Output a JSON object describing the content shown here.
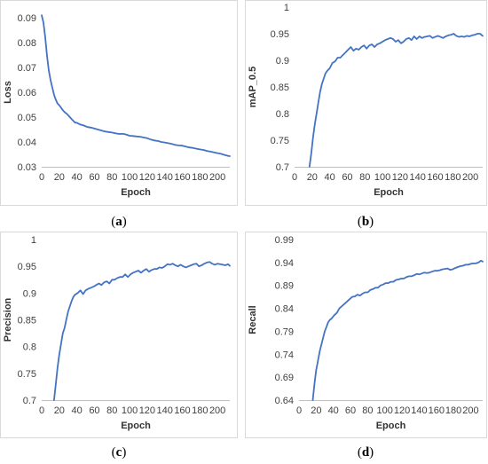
{
  "colors": {
    "line": "#4472C4",
    "axis": "#bfbfbf",
    "text": "#404040",
    "frame": "#d9d9d9"
  },
  "chart_data": [
    {
      "type": "line",
      "id": "a",
      "caption": "a",
      "xlabel": "Epoch",
      "ylabel": "Loss",
      "xlim": [
        0,
        214
      ],
      "ylim": [
        0.03,
        0.09
      ],
      "xticks": [
        0,
        20,
        40,
        60,
        80,
        100,
        120,
        140,
        160,
        180,
        200
      ],
      "xtick_labels": [
        "0",
        "20",
        "40",
        "60",
        "80",
        "100",
        "120",
        "140",
        "160",
        "180",
        "200"
      ],
      "yticks": [
        0.03,
        0.04,
        0.05,
        0.06,
        0.07,
        0.08,
        0.09
      ],
      "ytick_labels": [
        "0.03",
        "0.04",
        "0.05",
        "0.06",
        "0.07",
        "0.08",
        "0.09"
      ],
      "grid": false,
      "x": [
        0,
        2,
        4,
        6,
        8,
        10,
        12,
        14,
        16,
        18,
        20,
        22,
        24,
        26,
        28,
        30,
        32,
        34,
        36,
        38,
        40,
        44,
        48,
        52,
        56,
        60,
        64,
        68,
        72,
        76,
        80,
        84,
        88,
        92,
        96,
        100,
        104,
        108,
        112,
        116,
        120,
        124,
        128,
        132,
        136,
        140,
        144,
        148,
        152,
        156,
        160,
        164,
        168,
        172,
        176,
        180,
        184,
        188,
        192,
        196,
        200,
        204,
        208,
        212,
        214
      ],
      "y": [
        0.091,
        0.088,
        0.082,
        0.075,
        0.069,
        0.065,
        0.062,
        0.059,
        0.057,
        0.0555,
        0.0548,
        0.0538,
        0.0528,
        0.052,
        0.0515,
        0.0508,
        0.05,
        0.0492,
        0.0485,
        0.0478,
        0.0477,
        0.047,
        0.0466,
        0.046,
        0.0458,
        0.0454,
        0.045,
        0.0446,
        0.0442,
        0.044,
        0.0438,
        0.0435,
        0.0432,
        0.0433,
        0.043,
        0.0425,
        0.0424,
        0.0422,
        0.0421,
        0.0418,
        0.0415,
        0.041,
        0.0406,
        0.0404,
        0.04,
        0.0398,
        0.0395,
        0.0392,
        0.0388,
        0.0386,
        0.0385,
        0.0381,
        0.0378,
        0.0376,
        0.0373,
        0.037,
        0.0368,
        0.0364,
        0.0361,
        0.0358,
        0.0355,
        0.0352,
        0.0348,
        0.0344,
        0.0343
      ]
    },
    {
      "type": "line",
      "id": "b",
      "caption": "b",
      "xlabel": "Epoch",
      "ylabel": "mAP_0.5",
      "xlim": [
        0,
        214
      ],
      "ylim": [
        0.7,
        1
      ],
      "xticks": [
        0,
        20,
        40,
        60,
        80,
        100,
        120,
        140,
        160,
        180,
        200
      ],
      "xtick_labels": [
        "0",
        "20",
        "40",
        "60",
        "80",
        "100",
        "120",
        "140",
        "160",
        "180",
        "200"
      ],
      "yticks": [
        0.7,
        0.75,
        0.8,
        0.85,
        0.9,
        0.95,
        1
      ],
      "ytick_labels": [
        "0.7",
        "0.75",
        "0.8",
        "0.85",
        "0.9",
        "0.95",
        "1"
      ],
      "grid": false,
      "x": [
        17,
        19,
        21,
        23,
        25,
        27,
        29,
        31,
        33,
        35,
        37,
        40,
        43,
        46,
        49,
        52,
        55,
        58,
        61,
        64,
        67,
        70,
        73,
        76,
        79,
        82,
        85,
        88,
        91,
        94,
        97,
        100,
        103,
        106,
        109,
        112,
        115,
        118,
        121,
        124,
        127,
        130,
        133,
        136,
        139,
        142,
        145,
        148,
        151,
        154,
        157,
        160,
        163,
        166,
        169,
        172,
        175,
        178,
        181,
        184,
        187,
        190,
        193,
        196,
        199,
        202,
        205,
        208,
        211,
        214
      ],
      "y": [
        0.7,
        0.725,
        0.755,
        0.78,
        0.8,
        0.82,
        0.84,
        0.855,
        0.865,
        0.875,
        0.88,
        0.885,
        0.895,
        0.898,
        0.905,
        0.905,
        0.91,
        0.915,
        0.92,
        0.925,
        0.918,
        0.922,
        0.92,
        0.925,
        0.928,
        0.922,
        0.928,
        0.93,
        0.925,
        0.93,
        0.932,
        0.935,
        0.938,
        0.94,
        0.942,
        0.94,
        0.935,
        0.938,
        0.932,
        0.935,
        0.94,
        0.942,
        0.938,
        0.945,
        0.94,
        0.945,
        0.942,
        0.944,
        0.945,
        0.946,
        0.942,
        0.944,
        0.946,
        0.944,
        0.942,
        0.945,
        0.947,
        0.948,
        0.95,
        0.946,
        0.944,
        0.945,
        0.944,
        0.946,
        0.945,
        0.947,
        0.948,
        0.95,
        0.95,
        0.946
      ]
    },
    {
      "type": "line",
      "id": "c",
      "caption": "c",
      "xlabel": "Epoch",
      "ylabel": "Precision",
      "xlim": [
        0,
        214
      ],
      "ylim": [
        0.7,
        1
      ],
      "xticks": [
        0,
        20,
        40,
        60,
        80,
        100,
        120,
        140,
        160,
        180,
        200
      ],
      "xtick_labels": [
        "0",
        "20",
        "40",
        "60",
        "80",
        "100",
        "120",
        "140",
        "160",
        "180",
        "200"
      ],
      "yticks": [
        0.7,
        0.75,
        0.8,
        0.85,
        0.9,
        0.95,
        1
      ],
      "ytick_labels": [
        "0.7",
        "0.75",
        "0.8",
        "0.85",
        "0.9",
        "0.95",
        "1"
      ],
      "grid": false,
      "x": [
        14,
        16,
        18,
        20,
        22,
        24,
        26,
        28,
        30,
        32,
        34,
        36,
        38,
        41,
        44,
        47,
        50,
        53,
        56,
        59,
        62,
        65,
        68,
        71,
        74,
        77,
        80,
        83,
        86,
        89,
        92,
        95,
        98,
        101,
        104,
        107,
        110,
        113,
        116,
        119,
        122,
        125,
        128,
        131,
        134,
        137,
        140,
        143,
        146,
        149,
        152,
        155,
        158,
        161,
        164,
        167,
        170,
        173,
        176,
        179,
        182,
        185,
        188,
        191,
        194,
        197,
        200,
        203,
        206,
        209,
        212,
        214
      ],
      "y": [
        0.7,
        0.73,
        0.76,
        0.785,
        0.805,
        0.825,
        0.835,
        0.85,
        0.865,
        0.875,
        0.885,
        0.893,
        0.897,
        0.9,
        0.905,
        0.898,
        0.905,
        0.908,
        0.91,
        0.912,
        0.915,
        0.918,
        0.915,
        0.92,
        0.922,
        0.918,
        0.925,
        0.925,
        0.928,
        0.93,
        0.93,
        0.935,
        0.93,
        0.935,
        0.938,
        0.94,
        0.942,
        0.938,
        0.942,
        0.945,
        0.94,
        0.943,
        0.945,
        0.945,
        0.948,
        0.947,
        0.95,
        0.954,
        0.953,
        0.955,
        0.952,
        0.95,
        0.953,
        0.95,
        0.948,
        0.95,
        0.952,
        0.954,
        0.955,
        0.95,
        0.952,
        0.955,
        0.957,
        0.958,
        0.955,
        0.953,
        0.955,
        0.954,
        0.953,
        0.952,
        0.954,
        0.951
      ]
    },
    {
      "type": "line",
      "id": "d",
      "caption": "d",
      "xlabel": "Epoch",
      "ylabel": "Recall",
      "xlim": [
        0,
        214
      ],
      "ylim": [
        0.64,
        0.99
      ],
      "xticks": [
        0,
        20,
        40,
        60,
        80,
        100,
        120,
        140,
        160,
        180,
        200
      ],
      "xtick_labels": [
        "0",
        "20",
        "40",
        "60",
        "80",
        "100",
        "120",
        "140",
        "160",
        "180",
        "200"
      ],
      "yticks": [
        0.64,
        0.69,
        0.74,
        0.79,
        0.84,
        0.89,
        0.94,
        0.99
      ],
      "ytick_labels": [
        "0.64",
        "0.69",
        "0.74",
        "0.79",
        "0.84",
        "0.89",
        "0.94",
        "0.99"
      ],
      "grid": false,
      "x": [
        16,
        18,
        20,
        22,
        24,
        26,
        28,
        30,
        32,
        34,
        36,
        38,
        41,
        44,
        47,
        50,
        53,
        56,
        59,
        62,
        65,
        68,
        71,
        74,
        77,
        80,
        83,
        86,
        89,
        92,
        95,
        98,
        101,
        104,
        107,
        110,
        113,
        116,
        119,
        122,
        125,
        128,
        131,
        134,
        137,
        140,
        143,
        146,
        149,
        152,
        155,
        158,
        161,
        164,
        167,
        170,
        173,
        176,
        179,
        182,
        185,
        188,
        191,
        194,
        197,
        200,
        203,
        206,
        209,
        212,
        214
      ],
      "y": [
        0.64,
        0.675,
        0.705,
        0.725,
        0.745,
        0.76,
        0.775,
        0.79,
        0.8,
        0.81,
        0.815,
        0.818,
        0.825,
        0.83,
        0.84,
        0.845,
        0.85,
        0.855,
        0.86,
        0.865,
        0.866,
        0.87,
        0.868,
        0.872,
        0.875,
        0.875,
        0.88,
        0.882,
        0.885,
        0.885,
        0.89,
        0.892,
        0.895,
        0.895,
        0.898,
        0.898,
        0.902,
        0.903,
        0.905,
        0.905,
        0.908,
        0.91,
        0.91,
        0.912,
        0.915,
        0.914,
        0.916,
        0.918,
        0.917,
        0.918,
        0.92,
        0.922,
        0.922,
        0.923,
        0.925,
        0.926,
        0.927,
        0.924,
        0.925,
        0.928,
        0.93,
        0.932,
        0.933,
        0.935,
        0.935,
        0.937,
        0.938,
        0.938,
        0.94,
        0.944,
        0.942
      ]
    }
  ]
}
